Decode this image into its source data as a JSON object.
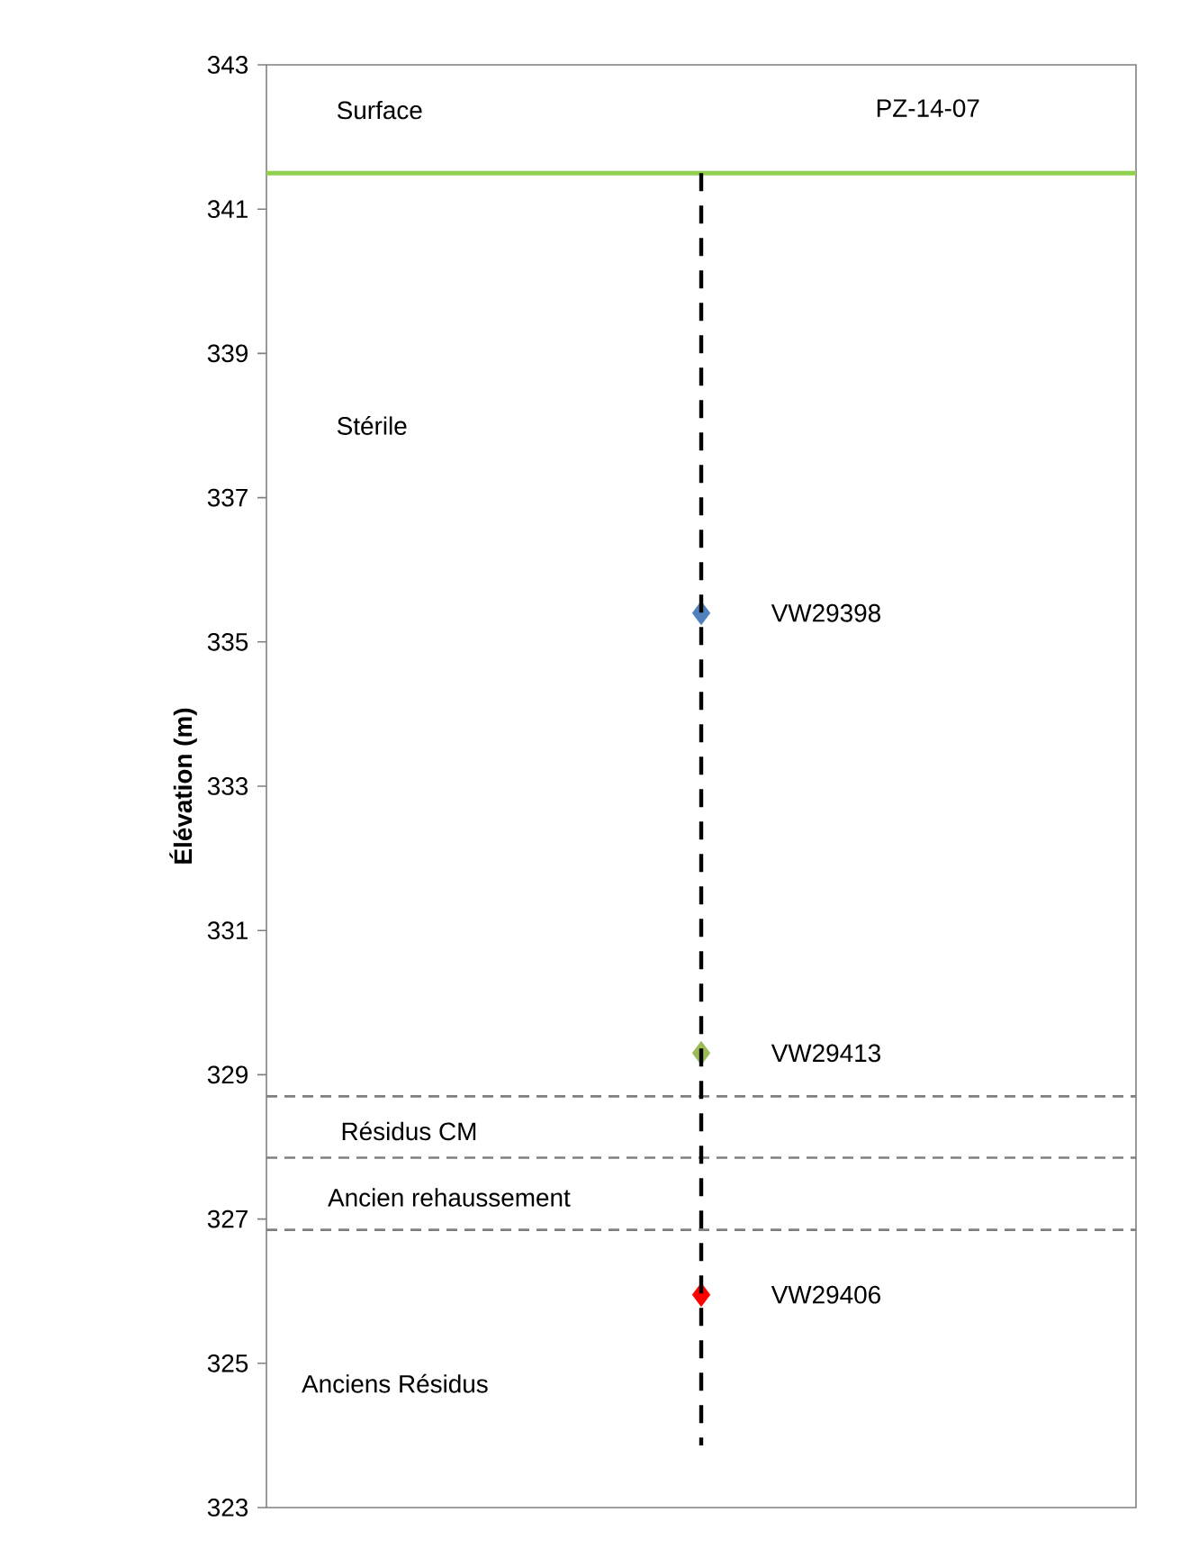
{
  "chart_data": {
    "type": "scatter",
    "ylabel": "Élévation (m)",
    "categories": [
      null
    ],
    "ylim": [
      323,
      343
    ],
    "yticks": [
      323,
      325,
      327,
      329,
      331,
      333,
      335,
      337,
      339,
      341,
      343
    ],
    "tick_labels": "y",
    "grid": false,
    "marker": "diamond",
    "series": [
      {
        "name": "VW29398",
        "color": "#4f81bd",
        "values": [
          335.4
        ]
      },
      {
        "name": "VW29413",
        "color": "#9bbb59",
        "values": [
          329.3
        ]
      },
      {
        "name": "VW29406",
        "color": "#ff0000",
        "values": [
          325.95
        ]
      }
    ],
    "ref_lines": [
      {
        "axis": "y",
        "value": 341.5,
        "label": "Surface",
        "color": "#92d050",
        "line_style": "solid"
      },
      {
        "axis": "y",
        "value": 328.7,
        "color": "#808080",
        "line_style": "dashed"
      },
      {
        "axis": "y",
        "value": 327.85,
        "color": "#808080",
        "line_style": "dashed"
      },
      {
        "axis": "y",
        "value": 326.85,
        "color": "#808080",
        "line_style": "dashed"
      }
    ],
    "annotations": [
      "PZ-14-07",
      "Stérile",
      "Résidus CM",
      "Ancien rehaussement",
      "Anciens Résidus"
    ]
  }
}
